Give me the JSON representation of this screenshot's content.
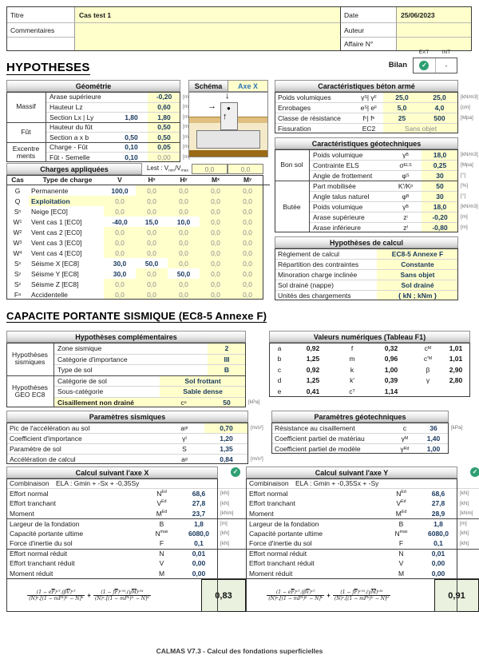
{
  "header": {
    "titre_label": "Titre",
    "titre": "Cas test 1",
    "commentaires_label": "Commentaires",
    "commentaires": "",
    "date_label": "Date",
    "date": "25/06/2023",
    "auteur_label": "Auteur",
    "auteur": "",
    "affaire_label": "Affaire N°",
    "affaire": ""
  },
  "bilan": {
    "ext": "EXT",
    "int": "INT",
    "label": "Bilan",
    "check": "✓",
    "int_value": "-"
  },
  "hypotheses_title": "HYPOTHESES",
  "geometrie": {
    "title": "Géométrie",
    "g1": "Massif",
    "g2": "Fût",
    "g3a": "Excentre",
    "g3b": "ments",
    "rows": [
      {
        "name": "Arase supérieure",
        "v1": "",
        "v2": "-0,20",
        "unit": "[m]"
      },
      {
        "name": "Hauteur Lz",
        "v1": "",
        "v2": "0,60",
        "unit": "[m]"
      },
      {
        "name": "Section Lx | Ly",
        "v1": "1,80",
        "v2": "1,80",
        "unit": "[m]"
      },
      {
        "name": "Hauteur du fût",
        "v1": "",
        "v2": "0,50",
        "unit": "[m]"
      },
      {
        "name": "Section a x b",
        "v1": "0,50",
        "v2": "0,50",
        "unit": "[m]"
      },
      {
        "name": "Charge - Fût",
        "v1": "0,10",
        "v2": "0,05",
        "unit": "[m]"
      },
      {
        "name": "Fût - Semelle",
        "v1": "0,10",
        "v2": "0,00",
        "unit": "[m]"
      }
    ]
  },
  "schema": {
    "label": "Schéma",
    "axe": "Axe X"
  },
  "beton": {
    "title": "Caractéristiques béton armé",
    "rows": [
      {
        "name": "Poids volumiques",
        "sym": "γ_S | γ_F",
        "v1": "25,0",
        "v2": "25,0",
        "unit": "[kN/m3]"
      },
      {
        "name": "Enrobages",
        "sym": "e_S | e_F",
        "v1": "5,0",
        "v2": "4,0",
        "unit": "[cm]"
      },
      {
        "name": "Classe de résistance",
        "sym": "f_c | f_e",
        "v1": "25",
        "v2": "500",
        "unit": "[Mpa]"
      }
    ],
    "fissuration": {
      "name": "Fissuration",
      "sym": "EC2",
      "value": "Sans objet"
    }
  },
  "geotech": {
    "title": "Caractéristiques géotechniques",
    "g1": "Bon sol",
    "g2": "Butée",
    "rows": [
      {
        "name": "Poids volumique",
        "sym": "γ_B",
        "val": "18,0",
        "unit": "[kN/m3]"
      },
      {
        "name": "Contrainte ELS",
        "sym": "σ_ELS",
        "val": "0,25",
        "unit": "[Mpa]"
      },
      {
        "name": "Angle de frottement",
        "sym": "φ_S",
        "val": "30",
        "unit": "[°]"
      },
      {
        "name": "Part mobilisée",
        "sym": "K'/K_p",
        "val": "50",
        "unit": "[%]"
      },
      {
        "name": "Angle talus naturel",
        "sym": "φ_B",
        "val": "30",
        "unit": "[°]"
      },
      {
        "name": "Poids volumique",
        "sym": "γ_B",
        "val": "18,0",
        "unit": "[kN/m3]"
      },
      {
        "name": "Arase supérieure",
        "sym": "z_i",
        "val": "-0,20",
        "unit": "[m]"
      },
      {
        "name": "Arase inférieure",
        "sym": "z_f",
        "val": "-0,80",
        "unit": "[m]"
      }
    ]
  },
  "hyp_calcul": {
    "title": "Hypothèses de calcul",
    "rows": [
      {
        "name": "Règlement de calcul",
        "val": "EC8-5 Annexe F"
      },
      {
        "name": "Répartition des contraintes",
        "val": "Constante"
      },
      {
        "name": "Minoration charge inclinée",
        "val": "Sans objet"
      },
      {
        "name": "Sol drainé (nappe)",
        "val": "Sol drainé"
      },
      {
        "name": "Unités des chargements",
        "val": "{ kN ; kNm }"
      }
    ]
  },
  "charges": {
    "title": "Charges appliquées",
    "lest_label": "Lest : V_min/V_max",
    "lest1": "0,0",
    "lest2": "0,0",
    "h_cas": "Cas",
    "h_type": "Type de charge",
    "h_v": "V",
    "h_hx": "H_x",
    "h_hy": "H_y",
    "h_mx": "M_x",
    "h_my": "M_y",
    "rows": [
      {
        "c": "G",
        "t": "Permanente",
        "v": "100,0",
        "hx": "0,0",
        "hy": "0,0",
        "mx": "0,0",
        "my": "0,0"
      },
      {
        "c": "Q",
        "t": "Exploitation",
        "v": "0,0",
        "hx": "0,0",
        "hy": "0,0",
        "mx": "0,0",
        "my": "0,0",
        "hl": true
      },
      {
        "c": "S_n",
        "t": "Neige [EC0]",
        "v": "0,0",
        "hx": "0,0",
        "hy": "0,0",
        "mx": "0,0",
        "my": "0,0"
      },
      {
        "c": "W_1",
        "t": "Vent cas 1 [EC0]",
        "v": "-40,0",
        "hx": "15,0",
        "hy": "10,0",
        "mx": "0,0",
        "my": "0,0"
      },
      {
        "c": "W_2",
        "t": "Vent cas 2 [EC0]",
        "v": "0,0",
        "hx": "0,0",
        "hy": "0,0",
        "mx": "0,0",
        "my": "0,0"
      },
      {
        "c": "W_3",
        "t": "Vent cas 3 [EC0]",
        "v": "0,0",
        "hx": "0,0",
        "hy": "0,0",
        "mx": "0,0",
        "my": "0,0"
      },
      {
        "c": "W_4",
        "t": "Vent cas 4 [EC0]",
        "v": "0,0",
        "hx": "0,0",
        "hy": "0,0",
        "mx": "0,0",
        "my": "0,0"
      },
      {
        "c": "S_x",
        "t": "Séisme X [EC8]",
        "v": "30,0",
        "hx": "50,0",
        "hy": "0,0",
        "mx": "0,0",
        "my": "0,0"
      },
      {
        "c": "S_y",
        "t": "Séisme Y [EC8]",
        "v": "30,0",
        "hx": "0,0",
        "hy": "50,0",
        "mx": "0,0",
        "my": "0,0"
      },
      {
        "c": "S_z",
        "t": "Séisme Z [EC8]",
        "v": "0,0",
        "hx": "0,0",
        "hy": "0,0",
        "mx": "0,0",
        "my": "0,0"
      },
      {
        "c": "F_a",
        "t": "Accidentelle",
        "v": "0,0",
        "hx": "0,0",
        "hy": "0,0",
        "mx": "0,0",
        "my": "0,0"
      }
    ]
  },
  "capacite_title": "CAPACITE PORTANTE SISMIQUE (EC8-5 Annexe F)",
  "hyp_comp": {
    "title": "Hypothèses complémentaires",
    "g1a": "Hypothèses",
    "g1b": "sismiques",
    "g2a": "Hypothèses",
    "g2b": "GEO EC8",
    "r1": {
      "name": "Zone sismique",
      "val": "2"
    },
    "r2": {
      "name": "Catégorie d'importance",
      "val": "III"
    },
    "r3": {
      "name": "Type de sol",
      "val": "B"
    },
    "r4": {
      "name": "Catégorie de sol",
      "val": "Sol frottant"
    },
    "r5": {
      "name": "Sous-catégorie",
      "val": "Sable dense"
    },
    "r6": {
      "name": "Cisaillement non drainé",
      "sym": "c_u",
      "val": "50",
      "unit": "[kPa]"
    }
  },
  "tableau_f1": {
    "title": "Valeurs numériques (Tableau F1)",
    "rows": [
      {
        "s1": "a",
        "v1": "0,92",
        "s2": "f",
        "v2": "0,32",
        "s3": "c_M",
        "v3": "1,01"
      },
      {
        "s1": "b",
        "v1": "1,25",
        "s2": "m",
        "v2": "0,96",
        "s3": "c'_M",
        "v3": "1,01"
      },
      {
        "s1": "c",
        "v1": "0,92",
        "s2": "k",
        "v2": "1,00",
        "s3": "β",
        "v3": "2,90"
      },
      {
        "s1": "d",
        "v1": "1,25",
        "s2": "k'",
        "v2": "0,39",
        "s3": "γ",
        "v3": "2,80"
      },
      {
        "s1": "e",
        "v1": "0,41",
        "s2": "c_T",
        "v2": "1,14",
        "s3": "",
        "v3": ""
      }
    ]
  },
  "param_sism": {
    "title": "Paramètres sismiques",
    "rows": [
      {
        "name": "Pic de l'accélération au sol",
        "sym": "a_gr",
        "val": "0,70",
        "unit": "[m/s²]"
      },
      {
        "name": "Coefficient d'importance",
        "sym": "γ_I",
        "val": "1,20",
        "unit": ""
      },
      {
        "name": "Paramètre de sol",
        "sym": "S",
        "val": "1,35",
        "unit": ""
      },
      {
        "name": "Accélération de calcul",
        "sym": "a_g",
        "val": "0,84",
        "unit": "[m/s²]"
      }
    ]
  },
  "param_geo": {
    "title": "Paramètres géotechniques",
    "rows": [
      {
        "name": "Résistance au cisaillement",
        "sym": "c",
        "val": "36",
        "unit": "[kPa]"
      },
      {
        "name": "Coefficient partiel de matériau",
        "sym": "γ_M",
        "val": "1,40",
        "unit": ""
      },
      {
        "name": "Coefficient partiel de modèle",
        "sym": "γ_Rd",
        "val": "1,00",
        "unit": ""
      }
    ]
  },
  "calcul_x": {
    "title": "Calcul suivant l'axe X",
    "comb_label": "Combinaison",
    "comb": "ELA : Gmin + -Sx + -0,35Sy",
    "rows": [
      {
        "name": "Effort normal",
        "sym": "N_Ed",
        "val": "68,6",
        "unit": "[kN]"
      },
      {
        "name": "Effort tranchant",
        "sym": "V_Ed",
        "val": "27,8",
        "unit": "[kN]"
      },
      {
        "name": "Moment",
        "sym": "M_Ed",
        "val": "23,7",
        "unit": "[kNm]"
      },
      {
        "name": "Largeur de la fondation",
        "sym": "B",
        "val": "1,8",
        "unit": "[m]"
      },
      {
        "name": "Capacité portante ultime",
        "sym": "N_max",
        "val": "6080,0",
        "unit": "[kN]"
      },
      {
        "name": "Force d'inertie du sol",
        "sym": "F",
        "val": "0,1",
        "unit": "[kN]"
      },
      {
        "name": "Effort normal réduit",
        "sym": "N",
        "val": "0,01",
        "unit": ""
      },
      {
        "name": "Effort tranchant réduit",
        "sym": "V",
        "val": "0,00",
        "unit": ""
      },
      {
        "name": "Moment réduit",
        "sym": "M",
        "val": "0,00",
        "unit": ""
      }
    ],
    "result": "0,83"
  },
  "calcul_y": {
    "title": "Calcul suivant l'axe Y",
    "comb_label": "Combinaison",
    "comb": "ELA : Gmin + -0,35Sx + -Sy",
    "rows": [
      {
        "name": "Effort normal",
        "sym": "N_Ed",
        "val": "68,6",
        "unit": "[kN]"
      },
      {
        "name": "Effort tranchant",
        "sym": "V_Ed",
        "val": "27,8",
        "unit": "[kN]"
      },
      {
        "name": "Moment",
        "sym": "M_Ed",
        "val": "28,9",
        "unit": "[kNm]"
      },
      {
        "name": "Largeur de la fondation",
        "sym": "B",
        "val": "1,8",
        "unit": "[m]"
      },
      {
        "name": "Capacité portante ultime",
        "sym": "N_max",
        "val": "6080,0",
        "unit": "[kN]"
      },
      {
        "name": "Force d'inertie du sol",
        "sym": "F",
        "val": "0,1",
        "unit": "[kN]"
      },
      {
        "name": "Effort normal réduit",
        "sym": "N",
        "val": "0,01",
        "unit": ""
      },
      {
        "name": "Effort tranchant réduit",
        "sym": "V",
        "val": "0,00",
        "unit": ""
      },
      {
        "name": "Moment réduit",
        "sym": "M",
        "val": "0,00",
        "unit": ""
      }
    ],
    "result": "0,91"
  },
  "formula": {
    "num1": "(1 − e~F)^{cT}.(β~V)^{cT}",
    "den1": "(~N)^{a}.[(1 − m~F^{k})^{k'} − ~N]^{b}",
    "plus": "+",
    "num2": "(1 − f~F)^{c'M}.(γ~M)^{cM}",
    "den2": "(~N)^{c}.[(1 − m~F^{k})^{k'} − ~N]^{d}"
  },
  "colors": {
    "input_yellow": "#FFFFCC",
    "value_navy": "#17375D",
    "check_green": "#2E9F72",
    "result_green": "#EAF1DE"
  },
  "footer": "CALMAS V7.3 - Calcul des fondations superficielles"
}
